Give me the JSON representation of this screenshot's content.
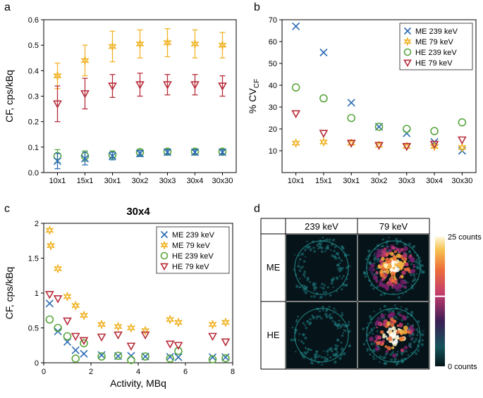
{
  "colors": {
    "ME239": "#2a6bb3",
    "ME79": "#f0b428",
    "HE239": "#5aa63d",
    "HE79": "#b72c3a",
    "axis": "#000000",
    "bg": "#ffffff"
  },
  "panelLabels": {
    "a": "a",
    "b": "b",
    "c": "c",
    "d": "d"
  },
  "plotA": {
    "type": "scatter-errorbar",
    "ylabel": "CF, cps/kBq",
    "ylim": [
      0,
      0.6
    ],
    "yticks": [
      0,
      0.1,
      0.2,
      0.3,
      0.4,
      0.5,
      0.6
    ],
    "categories": [
      "10x1",
      "15x1",
      "30x1",
      "30x2",
      "30x3",
      "30x4",
      "30x30"
    ],
    "label_fontsize": 14,
    "tick_fontsize": 11,
    "series": {
      "ME239": {
        "marker": "x",
        "y": [
          0.045,
          0.055,
          0.065,
          0.075,
          0.08,
          0.08,
          0.08
        ],
        "err": [
          0.03,
          0.025,
          0.015,
          0.012,
          0.01,
          0.01,
          0.01
        ]
      },
      "ME79": {
        "marker": "star",
        "y": [
          0.38,
          0.44,
          0.495,
          0.505,
          0.51,
          0.505,
          0.5
        ],
        "err": [
          0.05,
          0.06,
          0.06,
          0.055,
          0.055,
          0.055,
          0.05
        ]
      },
      "HE239": {
        "marker": "o",
        "y": [
          0.065,
          0.065,
          0.07,
          0.08,
          0.082,
          0.082,
          0.082
        ],
        "err": [
          0.025,
          0.02,
          0.015,
          0.012,
          0.01,
          0.01,
          0.01
        ]
      },
      "HE79": {
        "marker": "down",
        "y": [
          0.27,
          0.31,
          0.34,
          0.345,
          0.345,
          0.345,
          0.34
        ],
        "err": [
          0.07,
          0.06,
          0.045,
          0.045,
          0.04,
          0.04,
          0.04
        ]
      }
    }
  },
  "plotB": {
    "type": "scatter",
    "ylabel": "% CV",
    "ylabel_sub": "CF",
    "ylim": [
      0,
      70
    ],
    "yticks": [
      10,
      20,
      30,
      40,
      50,
      60,
      70
    ],
    "categories": [
      "10x1",
      "15x1",
      "30x1",
      "30x2",
      "30x3",
      "30x4",
      "30x30"
    ],
    "label_fontsize": 14,
    "tick_fontsize": 11,
    "legend": [
      "ME 239 keV",
      "ME 79 keV",
      "HE 239 keV",
      "HE 79 keV"
    ],
    "series": {
      "ME239": {
        "marker": "x",
        "y": [
          67,
          55,
          32,
          21,
          18,
          14,
          10
        ]
      },
      "ME79": {
        "marker": "star",
        "y": [
          13.5,
          14,
          13.5,
          12.5,
          12,
          12,
          11.5
        ]
      },
      "HE239": {
        "marker": "o",
        "y": [
          39,
          34,
          25,
          21,
          20,
          19,
          23
        ]
      },
      "HE79": {
        "marker": "down",
        "y": [
          27,
          18,
          13.5,
          12.5,
          12,
          13,
          15
        ]
      }
    }
  },
  "plotC": {
    "type": "scatter",
    "title": "30x4",
    "xlabel": "Activity, MBq",
    "ylabel": "CF, cps/kBq",
    "xlim": [
      0,
      8
    ],
    "xticks": [
      0,
      2,
      4,
      6,
      8
    ],
    "ylim": [
      0,
      2
    ],
    "yticks": [
      0,
      0.5,
      1.0,
      1.5,
      2.0
    ],
    "label_fontsize": 14,
    "tick_fontsize": 11,
    "legend": [
      "ME 239 keV",
      "ME 79 keV",
      "HE 239 keV",
      "HE 79 keV"
    ],
    "series": {
      "ME239": {
        "marker": "x",
        "x": [
          0.25,
          0.6,
          1.0,
          1.35,
          1.7,
          2.45,
          3.15,
          3.7,
          4.3,
          5.35,
          5.7,
          7.15,
          7.7
        ],
        "y": [
          0.85,
          0.45,
          0.3,
          0.18,
          0.13,
          0.11,
          0.095,
          0.1,
          0.09,
          0.085,
          0.08,
          0.08,
          0.08
        ]
      },
      "ME79": {
        "marker": "star",
        "x": [
          0.25,
          0.3,
          0.6,
          1.0,
          1.35,
          1.7,
          2.45,
          3.15,
          3.7,
          4.3,
          5.35,
          5.7,
          7.15,
          7.7
        ],
        "y": [
          1.9,
          1.68,
          1.35,
          0.95,
          0.82,
          0.68,
          0.55,
          0.52,
          0.5,
          0.46,
          0.62,
          0.58,
          0.55,
          0.58
        ]
      },
      "HE239": {
        "marker": "o",
        "x": [
          0.25,
          0.6,
          1.0,
          1.35,
          1.7,
          2.45,
          3.15,
          3.7,
          4.3,
          5.35,
          5.7,
          7.15,
          7.7
        ],
        "y": [
          0.62,
          0.5,
          0.38,
          0.06,
          0.28,
          0.09,
          0.1,
          0.04,
          0.09,
          0.06,
          0.17,
          0.05,
          0.065
        ]
      },
      "HE79": {
        "marker": "down",
        "x": [
          0.25,
          0.6,
          1.0,
          1.35,
          1.7,
          2.45,
          3.15,
          3.7,
          4.3,
          5.35,
          5.7,
          7.15,
          7.7
        ],
        "y": [
          0.98,
          0.92,
          0.6,
          0.38,
          0.32,
          0.37,
          0.4,
          0.24,
          0.4,
          0.27,
          0.25,
          0.38,
          0.3
        ]
      }
    }
  },
  "panelD": {
    "colLabels": [
      "239 keV",
      "79 keV"
    ],
    "rowLabels": [
      "ME",
      "HE"
    ],
    "colorbar": {
      "top": "25 counts",
      "bottom": "0 counts"
    }
  }
}
